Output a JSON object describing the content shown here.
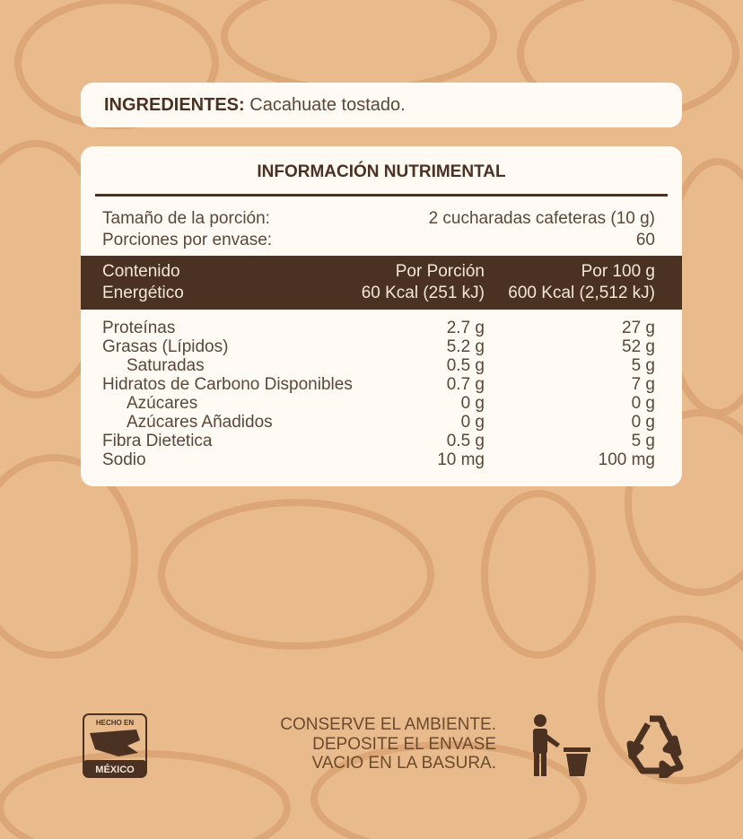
{
  "ingredients": {
    "label": "INGREDIENTES:",
    "text": "Cacahuate tostado."
  },
  "nutrition": {
    "title": "INFORMACIÓN NUTRIMENTAL",
    "serving": [
      [
        "Tamaño de la porción:",
        "2 cucharadas cafeteras (10 g)"
      ],
      [
        "Porciones por envase:",
        "60"
      ]
    ],
    "energy": {
      "label": [
        "Contenido",
        "Energético"
      ],
      "per_portion": [
        "Por Porción",
        "60 Kcal (251 kJ)"
      ],
      "per_100g": [
        "Por 100 g",
        "600 Kcal (2,512 kJ)"
      ]
    },
    "nutrients": [
      {
        "name": "Proteínas",
        "per_portion": "2.7 g",
        "per_100g": "27 g"
      },
      {
        "name": "Grasas (Lípidos)",
        "per_portion": "5.2 g",
        "per_100g": "52 g",
        "sub": [
          {
            "name": "Saturadas",
            "per_portion": "0.5 g",
            "per_100g": "5 g"
          }
        ]
      },
      {
        "name": "Hidratos de Carbono Disponibles",
        "per_portion": "0.7 g",
        "per_100g": "7 g",
        "sub": [
          {
            "name": "Azúcares",
            "per_portion": "0 g",
            "per_100g": "0 g"
          },
          {
            "name": "Azúcares Añadidos",
            "per_portion": "0 g",
            "per_100g": "0 g"
          }
        ]
      },
      {
        "name": "Fibra Dietetica",
        "per_portion": "0.5 g",
        "per_100g": "5 g"
      },
      {
        "name": "Sodio",
        "per_portion": "10 mg",
        "per_100g": "100 mg"
      }
    ]
  },
  "footer": {
    "logo": [
      "HECHO EN",
      "MÉXICO"
    ],
    "note": [
      "CONSERVE EL AMBIENTE.",
      "DEPOSITE EL ENVASE",
      "VACIO EN LA BASURA."
    ]
  }
}
